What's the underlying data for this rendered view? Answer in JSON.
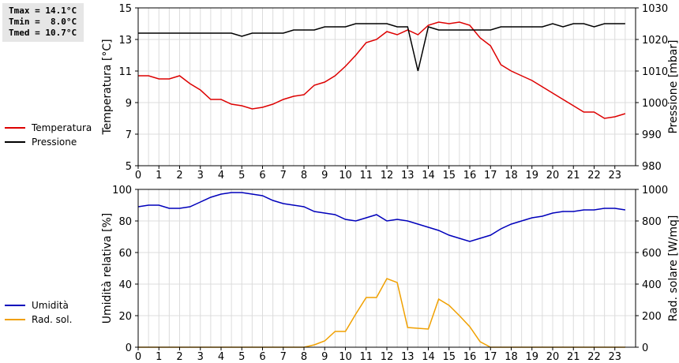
{
  "stats": {
    "tmax": "Tmax = 14.1°C",
    "tmin": "Tmin =  8.0°C",
    "tmed": "Tmed = 10.7°C"
  },
  "chart_data": [
    {
      "type": "line",
      "title": "",
      "xlabel": "",
      "ylabel": "Temperatura [°C]",
      "y2label": "Pressione [mbar]",
      "xlim": [
        0,
        24
      ],
      "ylim": [
        5,
        15
      ],
      "y2lim": [
        980,
        1030
      ],
      "xticks": [
        "0",
        "1",
        "2",
        "3",
        "4",
        "5",
        "6",
        "7",
        "8",
        "9",
        "10",
        "11",
        "12",
        "13",
        "14",
        "15",
        "16",
        "17",
        "18",
        "19",
        "20",
        "21",
        "22",
        "23"
      ],
      "yticks": [
        "5",
        "7",
        "9",
        "11",
        "13",
        "15"
      ],
      "y2ticks": [
        "980",
        "990",
        "1000",
        "1010",
        "1020",
        "1030"
      ],
      "series": [
        {
          "name": "Temperatura",
          "axis": "left",
          "color": "#dd0000",
          "x": [
            0,
            0.5,
            1,
            1.5,
            2,
            2.5,
            3,
            3.5,
            4,
            4.5,
            5,
            5.5,
            6,
            6.5,
            7,
            7.5,
            8,
            8.5,
            9,
            9.5,
            10,
            10.5,
            11,
            11.5,
            12,
            12.5,
            13,
            13.5,
            14,
            14.5,
            15,
            15.5,
            16,
            16.5,
            17,
            17.5,
            18,
            18.5,
            19,
            19.5,
            20,
            20.5,
            21,
            21.5,
            22,
            22.5,
            23,
            23.5
          ],
          "values": [
            10.7,
            10.7,
            10.5,
            10.5,
            10.7,
            10.2,
            9.8,
            9.2,
            9.2,
            8.9,
            8.8,
            8.6,
            8.7,
            8.9,
            9.2,
            9.4,
            9.5,
            10.1,
            10.3,
            10.7,
            11.3,
            12.0,
            12.8,
            13.0,
            13.5,
            13.3,
            13.6,
            13.3,
            13.9,
            14.1,
            14.0,
            14.1,
            13.9,
            13.1,
            12.6,
            11.4,
            11.0,
            10.7,
            10.4,
            10.0,
            9.6,
            9.2,
            8.8,
            8.4,
            8.4,
            8.0,
            8.1,
            8.3
          ]
        },
        {
          "name": "Pressione",
          "axis": "right",
          "color": "#000000",
          "x": [
            0,
            0.5,
            1,
            1.5,
            2,
            2.5,
            3,
            3.5,
            4,
            4.5,
            5,
            5.5,
            6,
            6.5,
            7,
            7.5,
            8,
            8.5,
            9,
            9.5,
            10,
            10.5,
            11,
            11.5,
            12,
            12.5,
            13,
            13.5,
            14,
            14.5,
            15,
            15.5,
            16,
            16.5,
            17,
            17.5,
            18,
            18.5,
            19,
            19.5,
            20,
            20.5,
            21,
            21.5,
            22,
            22.5,
            23,
            23.5
          ],
          "values": [
            1022,
            1022,
            1022,
            1022,
            1022,
            1022,
            1022,
            1022,
            1022,
            1022,
            1021,
            1022,
            1022,
            1022,
            1022,
            1023,
            1023,
            1023,
            1024,
            1024,
            1024,
            1025,
            1025,
            1025,
            1025,
            1024,
            1024,
            1010,
            1024,
            1023,
            1023,
            1023,
            1023,
            1023,
            1023,
            1024,
            1024,
            1024,
            1024,
            1024,
            1025,
            1024,
            1025,
            1025,
            1024,
            1025,
            1025,
            1025
          ]
        }
      ]
    },
    {
      "type": "line",
      "title": "",
      "xlabel": "",
      "ylabel": "Umidità relativa [%]",
      "y2label": "Rad. solare [W/mq]",
      "xlim": [
        0,
        24
      ],
      "ylim": [
        0,
        100
      ],
      "y2lim": [
        0,
        1000
      ],
      "xticks": [
        "0",
        "1",
        "2",
        "3",
        "4",
        "5",
        "6",
        "7",
        "8",
        "9",
        "10",
        "11",
        "12",
        "13",
        "14",
        "15",
        "16",
        "17",
        "18",
        "19",
        "20",
        "21",
        "22",
        "23"
      ],
      "yticks": [
        "0",
        "20",
        "40",
        "60",
        "80",
        "100"
      ],
      "y2ticks": [
        "0",
        "200",
        "400",
        "600",
        "800",
        "1000"
      ],
      "series": [
        {
          "name": "Umidità",
          "axis": "left",
          "color": "#0000bb",
          "x": [
            0,
            0.5,
            1,
            1.5,
            2,
            2.5,
            3,
            3.5,
            4,
            4.5,
            5,
            5.5,
            6,
            6.5,
            7,
            7.5,
            8,
            8.5,
            9,
            9.5,
            10,
            10.5,
            11,
            11.5,
            12,
            12.5,
            13,
            13.5,
            14,
            14.5,
            15,
            15.5,
            16,
            16.5,
            17,
            17.5,
            18,
            18.5,
            19,
            19.5,
            20,
            20.5,
            21,
            21.5,
            22,
            22.5,
            23,
            23.5
          ],
          "values": [
            89,
            90,
            90,
            88,
            88,
            89,
            92,
            95,
            97,
            98,
            98,
            97,
            96,
            93,
            91,
            90,
            89,
            86,
            85,
            84,
            81,
            80,
            82,
            84,
            80,
            81,
            80,
            78,
            76,
            74,
            71,
            69,
            67,
            69,
            71,
            75,
            78,
            80,
            82,
            83,
            85,
            86,
            86,
            87,
            87,
            88,
            88,
            87
          ]
        },
        {
          "name": "Rad. sol.",
          "axis": "right",
          "color": "#f0a000",
          "x": [
            0,
            0.5,
            1,
            1.5,
            2,
            2.5,
            3,
            3.5,
            4,
            4.5,
            5,
            5.5,
            6,
            6.5,
            7,
            7.5,
            8,
            8.5,
            9,
            9.5,
            10,
            10.5,
            11,
            11.5,
            12,
            12.5,
            13,
            13.5,
            14,
            14.5,
            15,
            15.5,
            16,
            16.5,
            17,
            17.5,
            18,
            18.5,
            19,
            19.5,
            20,
            20.5,
            21,
            21.5,
            22,
            22.5,
            23,
            23.5
          ],
          "values": [
            0,
            0,
            0,
            0,
            0,
            0,
            0,
            0,
            0,
            0,
            0,
            0,
            0,
            0,
            0,
            0,
            0,
            15,
            40,
            100,
            100,
            210,
            315,
            315,
            435,
            410,
            125,
            120,
            115,
            305,
            265,
            200,
            130,
            35,
            0,
            0,
            0,
            0,
            0,
            0,
            0,
            0,
            0,
            0,
            0,
            0,
            0,
            0
          ]
        }
      ]
    }
  ]
}
